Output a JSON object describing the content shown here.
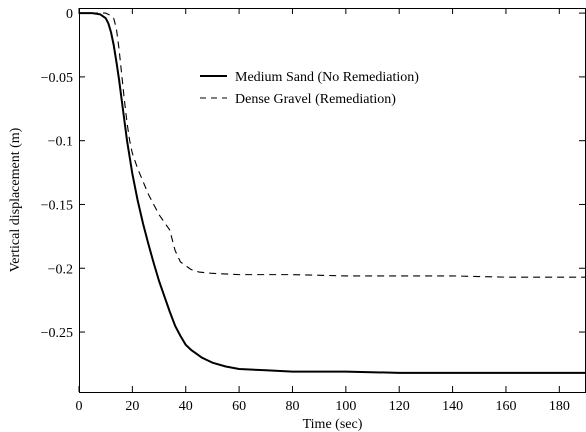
{
  "chart_data": {
    "type": "line",
    "xlabel": "Time (sec)",
    "ylabel": "Vertical displacement (m)",
    "xlim": [
      0,
      190
    ],
    "ylim": [
      -0.297,
      0.004
    ],
    "xticks": [
      0,
      20,
      40,
      60,
      80,
      100,
      120,
      140,
      160,
      180
    ],
    "xtick_labels": [
      "0",
      "20",
      "40",
      "60",
      "80",
      "100",
      "120",
      "140",
      "160",
      "180"
    ],
    "yticks": [
      0,
      -0.05,
      -0.1,
      -0.15,
      -0.2,
      -0.25
    ],
    "ytick_labels": [
      "0",
      "−0.05",
      "−0.1",
      "−0.15",
      "−0.2",
      "−0.25"
    ],
    "grid": false,
    "legend_position": "top-center",
    "series": [
      {
        "name": "Medium Sand (No Remediation)",
        "style": "solid",
        "color": "#000000",
        "x": [
          0,
          5,
          8,
          10,
          11,
          12,
          13,
          14,
          15,
          16,
          17,
          18,
          19,
          20,
          22,
          24,
          26,
          28,
          30,
          32,
          34,
          36,
          38,
          40,
          42,
          44,
          46,
          48,
          50,
          55,
          60,
          70,
          80,
          100,
          120,
          140,
          160,
          180,
          190
        ],
        "y": [
          0,
          0,
          -0.001,
          -0.004,
          -0.008,
          -0.015,
          -0.025,
          -0.038,
          -0.052,
          -0.068,
          -0.084,
          -0.1,
          -0.113,
          -0.126,
          -0.147,
          -0.165,
          -0.181,
          -0.196,
          -0.21,
          -0.222,
          -0.234,
          -0.245,
          -0.253,
          -0.26,
          -0.264,
          -0.267,
          -0.27,
          -0.272,
          -0.274,
          -0.277,
          -0.279,
          -0.28,
          -0.281,
          -0.281,
          -0.282,
          -0.282,
          -0.282,
          -0.282,
          -0.282
        ]
      },
      {
        "name": "Dense Gravel (Remediation)",
        "style": "dashed",
        "color": "#000000",
        "x": [
          0,
          10,
          12,
          13,
          14,
          15,
          16,
          17,
          18,
          19,
          20,
          22,
          24,
          26,
          28,
          30,
          32,
          34,
          35,
          36,
          38,
          40,
          42,
          45,
          50,
          60,
          80,
          100,
          120,
          140,
          160,
          180,
          190
        ],
        "y": [
          0,
          0,
          -0.002,
          -0.004,
          -0.012,
          -0.028,
          -0.048,
          -0.068,
          -0.086,
          -0.1,
          -0.11,
          -0.122,
          -0.132,
          -0.142,
          -0.15,
          -0.158,
          -0.164,
          -0.17,
          -0.178,
          -0.186,
          -0.195,
          -0.198,
          -0.201,
          -0.203,
          -0.204,
          -0.205,
          -0.205,
          -0.206,
          -0.206,
          -0.206,
          -0.207,
          -0.207,
          -0.207
        ]
      }
    ]
  }
}
